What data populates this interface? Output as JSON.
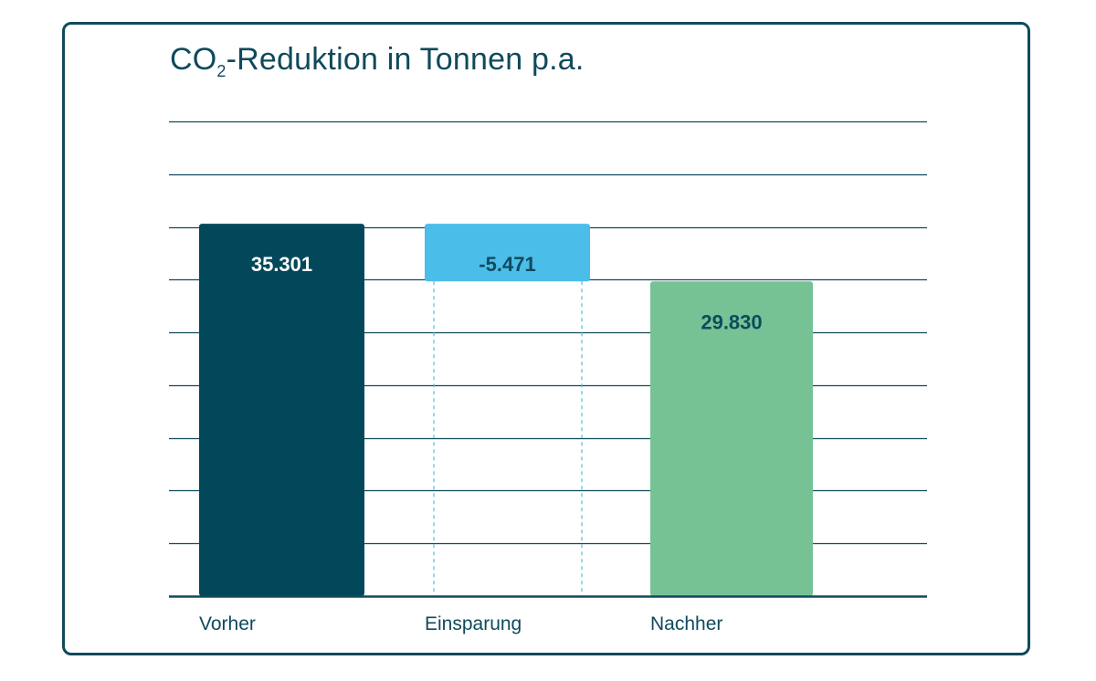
{
  "title": {
    "pre": "CO",
    "sub": "2",
    "post": "-Reduktion in Tonnen p.a."
  },
  "colors": {
    "frame": "#0f4a5c",
    "grid": "#0f4a5c",
    "before": "#03485a",
    "saving": "#4bbde9",
    "after": "#77c295",
    "connector": "#4bbde9",
    "label_light": "#ffffff",
    "label_dark": "#0f4a5c"
  },
  "chart_data": {
    "type": "bar",
    "subtype": "waterfall",
    "title": "CO2-Reduktion in Tonnen p.a.",
    "categories": [
      "Vorher",
      "Einsparung",
      "Nachher"
    ],
    "values": [
      35301,
      -5471,
      29830
    ],
    "data_labels": [
      "35.301",
      "-5.471",
      "29.830"
    ],
    "xlabel": "",
    "ylabel": "",
    "ylim": [
      0,
      45000
    ],
    "grid": true,
    "legend": "none"
  }
}
